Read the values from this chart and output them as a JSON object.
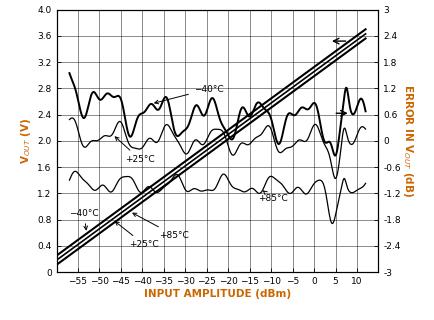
{
  "xlabel": "INPUT AMPLITUDE (dBm)",
  "ylabel_left": "V$_{OUT}$ (V)",
  "ylabel_right": "ERROR IN V$_{OUT}$ (dB)",
  "xlim": [
    -60,
    15
  ],
  "ylim_left": [
    0,
    4.0
  ],
  "ylim_right": [
    -3.0,
    3.0
  ],
  "xticks": [
    -55,
    -50,
    -45,
    -40,
    -35,
    -30,
    -25,
    -20,
    -15,
    -10,
    -5,
    0,
    5,
    10
  ],
  "yticks_left": [
    0,
    0.4,
    0.8,
    1.2,
    1.6,
    2.0,
    2.4,
    2.8,
    3.2,
    3.6,
    4.0
  ],
  "yticks_right": [
    -3.0,
    -2.4,
    -1.8,
    -1.2,
    -0.6,
    0,
    0.6,
    1.2,
    1.8,
    2.4,
    3.0
  ],
  "bg_color": "#ffffff",
  "label_color": "#cc6600",
  "line_slope": 0.04861,
  "line_intercept_at_neg60": 0.18
}
